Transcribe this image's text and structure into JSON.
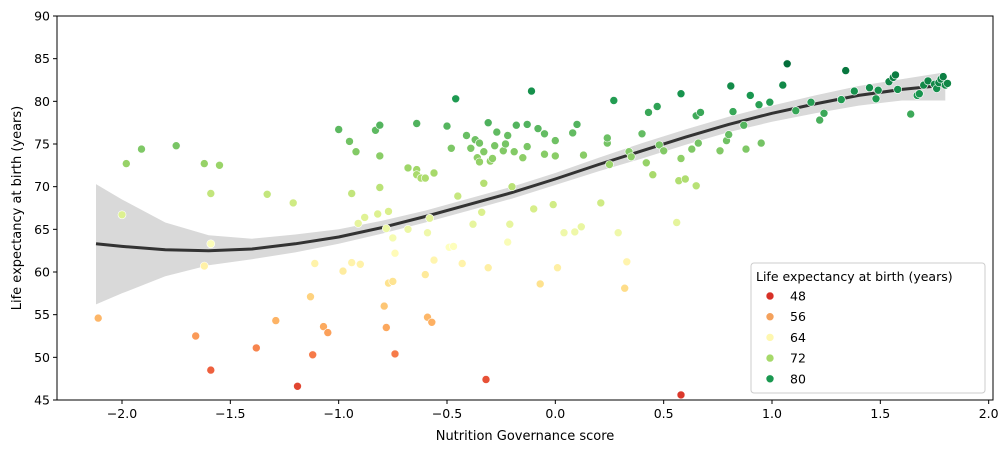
{
  "chart_data": {
    "type": "scatter",
    "xlabel": "Nutrition Governance score",
    "ylabel": "Life expectancy at birth (years)",
    "xlim": [
      -2.3,
      2.02
    ],
    "ylim": [
      45,
      90
    ],
    "x_ticks": [
      -2.0,
      -1.5,
      -1.0,
      -0.5,
      0.0,
      0.5,
      1.0,
      1.5,
      2.0
    ],
    "y_ticks": [
      45,
      50,
      55,
      60,
      65,
      70,
      75,
      80,
      85,
      90
    ],
    "grid": false,
    "legend": {
      "title": "Life expectancy at birth (years)",
      "placement": "lower-right",
      "entries": [
        {
          "label": "48",
          "color": "#d73027"
        },
        {
          "label": "56",
          "color": "#f4a15c"
        },
        {
          "label": "64",
          "color": "#fef7b0"
        },
        {
          "label": "72",
          "color": "#a6d96a"
        },
        {
          "label": "80",
          "color": "#1a9850"
        }
      ]
    },
    "colormap": [
      "#d73027",
      "#f46d43",
      "#fdae61",
      "#fee08b",
      "#ffffbf",
      "#d9ef8b",
      "#a6d96a",
      "#66bd63",
      "#1a9850",
      "#006837"
    ],
    "color_range": [
      45,
      85
    ],
    "trend": {
      "type": "lowess",
      "line_color": "#333333",
      "band_color": "#d9d9d9",
      "x": [
        -2.12,
        -2.0,
        -1.8,
        -1.6,
        -1.4,
        -1.2,
        -1.0,
        -0.8,
        -0.6,
        -0.4,
        -0.2,
        0.0,
        0.2,
        0.4,
        0.6,
        0.8,
        1.0,
        1.2,
        1.4,
        1.6,
        1.8
      ],
      "y": [
        63.3,
        63.0,
        62.6,
        62.5,
        62.7,
        63.3,
        64.1,
        65.2,
        66.5,
        67.9,
        69.3,
        70.9,
        72.6,
        74.2,
        75.8,
        77.3,
        78.6,
        79.7,
        80.7,
        81.4,
        81.9
      ],
      "lower": [
        56.2,
        57.5,
        59.5,
        60.8,
        61.5,
        62.3,
        63.3,
        64.5,
        65.8,
        67.2,
        68.6,
        70.2,
        71.8,
        73.3,
        74.9,
        76.4,
        77.6,
        78.6,
        79.5,
        80.1,
        80.1
      ],
      "upper": [
        70.3,
        68.5,
        65.8,
        64.3,
        63.9,
        64.4,
        65.0,
        66.0,
        67.2,
        68.6,
        70.0,
        71.6,
        73.4,
        75.1,
        76.7,
        78.2,
        79.5,
        80.7,
        81.8,
        82.6,
        83.4
      ]
    },
    "points": [
      {
        "x": -2.11,
        "y": 54.6
      },
      {
        "x": -2.0,
        "y": 66.7
      },
      {
        "x": -1.98,
        "y": 72.7
      },
      {
        "x": -1.91,
        "y": 74.4
      },
      {
        "x": -1.75,
        "y": 74.8
      },
      {
        "x": -1.66,
        "y": 52.5
      },
      {
        "x": -1.62,
        "y": 72.7
      },
      {
        "x": -1.62,
        "y": 60.7
      },
      {
        "x": -1.59,
        "y": 69.2
      },
      {
        "x": -1.59,
        "y": 63.3
      },
      {
        "x": -1.59,
        "y": 48.5
      },
      {
        "x": -1.55,
        "y": 72.5
      },
      {
        "x": -1.38,
        "y": 51.1
      },
      {
        "x": -1.33,
        "y": 69.1
      },
      {
        "x": -1.29,
        "y": 54.3
      },
      {
        "x": -1.21,
        "y": 68.1
      },
      {
        "x": -1.19,
        "y": 46.6
      },
      {
        "x": -1.13,
        "y": 57.1
      },
      {
        "x": -1.12,
        "y": 50.3
      },
      {
        "x": -1.11,
        "y": 61.0
      },
      {
        "x": -1.07,
        "y": 53.6
      },
      {
        "x": -1.05,
        "y": 52.9
      },
      {
        "x": -1.0,
        "y": 76.7
      },
      {
        "x": -0.98,
        "y": 60.1
      },
      {
        "x": -0.95,
        "y": 75.3
      },
      {
        "x": -0.94,
        "y": 69.2
      },
      {
        "x": -0.94,
        "y": 61.1
      },
      {
        "x": -0.92,
        "y": 74.1
      },
      {
        "x": -0.91,
        "y": 65.7
      },
      {
        "x": -0.9,
        "y": 60.9
      },
      {
        "x": -0.88,
        "y": 66.4
      },
      {
        "x": -0.83,
        "y": 76.6
      },
      {
        "x": -0.82,
        "y": 66.8
      },
      {
        "x": -0.81,
        "y": 77.2
      },
      {
        "x": -0.81,
        "y": 69.9
      },
      {
        "x": -0.81,
        "y": 73.6
      },
      {
        "x": -0.79,
        "y": 56.0
      },
      {
        "x": -0.78,
        "y": 65.1
      },
      {
        "x": -0.78,
        "y": 53.5
      },
      {
        "x": -0.77,
        "y": 67.1
      },
      {
        "x": -0.77,
        "y": 58.7
      },
      {
        "x": -0.75,
        "y": 58.9
      },
      {
        "x": -0.75,
        "y": 64.0
      },
      {
        "x": -0.74,
        "y": 62.2
      },
      {
        "x": -0.74,
        "y": 50.4
      },
      {
        "x": -0.68,
        "y": 72.2
      },
      {
        "x": -0.68,
        "y": 65.0
      },
      {
        "x": -0.64,
        "y": 77.4
      },
      {
        "x": -0.64,
        "y": 72.0
      },
      {
        "x": -0.64,
        "y": 71.4
      },
      {
        "x": -0.62,
        "y": 71.0
      },
      {
        "x": -0.6,
        "y": 71.0
      },
      {
        "x": -0.6,
        "y": 59.7
      },
      {
        "x": -0.59,
        "y": 54.7
      },
      {
        "x": -0.59,
        "y": 64.6
      },
      {
        "x": -0.58,
        "y": 66.3
      },
      {
        "x": -0.57,
        "y": 54.1
      },
      {
        "x": -0.56,
        "y": 61.4
      },
      {
        "x": -0.56,
        "y": 71.6
      },
      {
        "x": -0.5,
        "y": 77.1
      },
      {
        "x": -0.49,
        "y": 62.9
      },
      {
        "x": -0.48,
        "y": 74.5
      },
      {
        "x": -0.47,
        "y": 63.0
      },
      {
        "x": -0.46,
        "y": 80.3
      },
      {
        "x": -0.45,
        "y": 68.9
      },
      {
        "x": -0.43,
        "y": 61.0
      },
      {
        "x": -0.41,
        "y": 76.0
      },
      {
        "x": -0.39,
        "y": 74.5
      },
      {
        "x": -0.38,
        "y": 65.6
      },
      {
        "x": -0.37,
        "y": 75.5
      },
      {
        "x": -0.36,
        "y": 73.4
      },
      {
        "x": -0.35,
        "y": 72.9
      },
      {
        "x": -0.35,
        "y": 75.1
      },
      {
        "x": -0.34,
        "y": 67.0
      },
      {
        "x": -0.33,
        "y": 70.4
      },
      {
        "x": -0.33,
        "y": 74.1
      },
      {
        "x": -0.32,
        "y": 47.4
      },
      {
        "x": -0.31,
        "y": 77.5
      },
      {
        "x": -0.31,
        "y": 60.5
      },
      {
        "x": -0.3,
        "y": 73.0
      },
      {
        "x": -0.29,
        "y": 73.3
      },
      {
        "x": -0.28,
        "y": 74.8
      },
      {
        "x": -0.27,
        "y": 76.4
      },
      {
        "x": -0.24,
        "y": 74.2
      },
      {
        "x": -0.23,
        "y": 75.0
      },
      {
        "x": -0.22,
        "y": 76.0
      },
      {
        "x": -0.22,
        "y": 63.5
      },
      {
        "x": -0.21,
        "y": 65.6
      },
      {
        "x": -0.2,
        "y": 70.0
      },
      {
        "x": -0.19,
        "y": 74.1
      },
      {
        "x": -0.18,
        "y": 77.2
      },
      {
        "x": -0.15,
        "y": 73.4
      },
      {
        "x": -0.13,
        "y": 74.7
      },
      {
        "x": -0.13,
        "y": 77.3
      },
      {
        "x": -0.11,
        "y": 81.2
      },
      {
        "x": -0.1,
        "y": 67.4
      },
      {
        "x": -0.08,
        "y": 76.8
      },
      {
        "x": -0.07,
        "y": 58.6
      },
      {
        "x": -0.05,
        "y": 73.8
      },
      {
        "x": -0.05,
        "y": 76.2
      },
      {
        "x": -0.01,
        "y": 67.9
      },
      {
        "x": 0.0,
        "y": 75.4
      },
      {
        "x": 0.0,
        "y": 73.6
      },
      {
        "x": 0.01,
        "y": 60.5
      },
      {
        "x": 0.04,
        "y": 64.6
      },
      {
        "x": 0.08,
        "y": 76.3
      },
      {
        "x": 0.09,
        "y": 64.7
      },
      {
        "x": 0.1,
        "y": 77.3
      },
      {
        "x": 0.12,
        "y": 65.3
      },
      {
        "x": 0.13,
        "y": 73.7
      },
      {
        "x": 0.21,
        "y": 68.1
      },
      {
        "x": 0.24,
        "y": 75.1
      },
      {
        "x": 0.24,
        "y": 75.7
      },
      {
        "x": 0.25,
        "y": 72.6
      },
      {
        "x": 0.27,
        "y": 80.1
      },
      {
        "x": 0.29,
        "y": 64.6
      },
      {
        "x": 0.32,
        "y": 58.1
      },
      {
        "x": 0.33,
        "y": 61.2
      },
      {
        "x": 0.34,
        "y": 74.1
      },
      {
        "x": 0.35,
        "y": 73.5
      },
      {
        "x": 0.4,
        "y": 76.2
      },
      {
        "x": 0.42,
        "y": 72.8
      },
      {
        "x": 0.43,
        "y": 78.7
      },
      {
        "x": 0.45,
        "y": 71.4
      },
      {
        "x": 0.47,
        "y": 79.4
      },
      {
        "x": 0.48,
        "y": 74.9
      },
      {
        "x": 0.5,
        "y": 74.2
      },
      {
        "x": 0.56,
        "y": 65.8
      },
      {
        "x": 0.57,
        "y": 70.7
      },
      {
        "x": 0.58,
        "y": 80.9
      },
      {
        "x": 0.58,
        "y": 45.6
      },
      {
        "x": 0.58,
        "y": 73.3
      },
      {
        "x": 0.6,
        "y": 70.9
      },
      {
        "x": 0.63,
        "y": 74.4
      },
      {
        "x": 0.65,
        "y": 70.1
      },
      {
        "x": 0.65,
        "y": 78.3
      },
      {
        "x": 0.66,
        "y": 75.1
      },
      {
        "x": 0.67,
        "y": 78.7
      },
      {
        "x": 0.76,
        "y": 74.2
      },
      {
        "x": 0.79,
        "y": 75.4
      },
      {
        "x": 0.8,
        "y": 76.1
      },
      {
        "x": 0.81,
        "y": 81.8
      },
      {
        "x": 0.82,
        "y": 78.8
      },
      {
        "x": 0.87,
        "y": 77.2
      },
      {
        "x": 0.88,
        "y": 74.4
      },
      {
        "x": 0.9,
        "y": 80.7
      },
      {
        "x": 0.94,
        "y": 79.6
      },
      {
        "x": 0.95,
        "y": 75.1
      },
      {
        "x": 0.99,
        "y": 79.9
      },
      {
        "x": 1.05,
        "y": 81.9
      },
      {
        "x": 1.07,
        "y": 84.4
      },
      {
        "x": 1.11,
        "y": 78.9
      },
      {
        "x": 1.18,
        "y": 79.9
      },
      {
        "x": 1.22,
        "y": 77.8
      },
      {
        "x": 1.24,
        "y": 78.6
      },
      {
        "x": 1.32,
        "y": 80.2
      },
      {
        "x": 1.34,
        "y": 83.6
      },
      {
        "x": 1.38,
        "y": 81.2
      },
      {
        "x": 1.45,
        "y": 81.6
      },
      {
        "x": 1.48,
        "y": 80.3
      },
      {
        "x": 1.49,
        "y": 81.3
      },
      {
        "x": 1.54,
        "y": 82.3
      },
      {
        "x": 1.56,
        "y": 82.8
      },
      {
        "x": 1.57,
        "y": 83.1
      },
      {
        "x": 1.58,
        "y": 81.4
      },
      {
        "x": 1.64,
        "y": 78.5
      },
      {
        "x": 1.67,
        "y": 80.7
      },
      {
        "x": 1.68,
        "y": 80.9
      },
      {
        "x": 1.7,
        "y": 81.9
      },
      {
        "x": 1.72,
        "y": 82.4
      },
      {
        "x": 1.75,
        "y": 82.0
      },
      {
        "x": 1.76,
        "y": 81.5
      },
      {
        "x": 1.77,
        "y": 82.2
      },
      {
        "x": 1.78,
        "y": 82.6
      },
      {
        "x": 1.79,
        "y": 82.9
      },
      {
        "x": 1.8,
        "y": 81.9
      },
      {
        "x": 1.81,
        "y": 82.1
      }
    ]
  }
}
